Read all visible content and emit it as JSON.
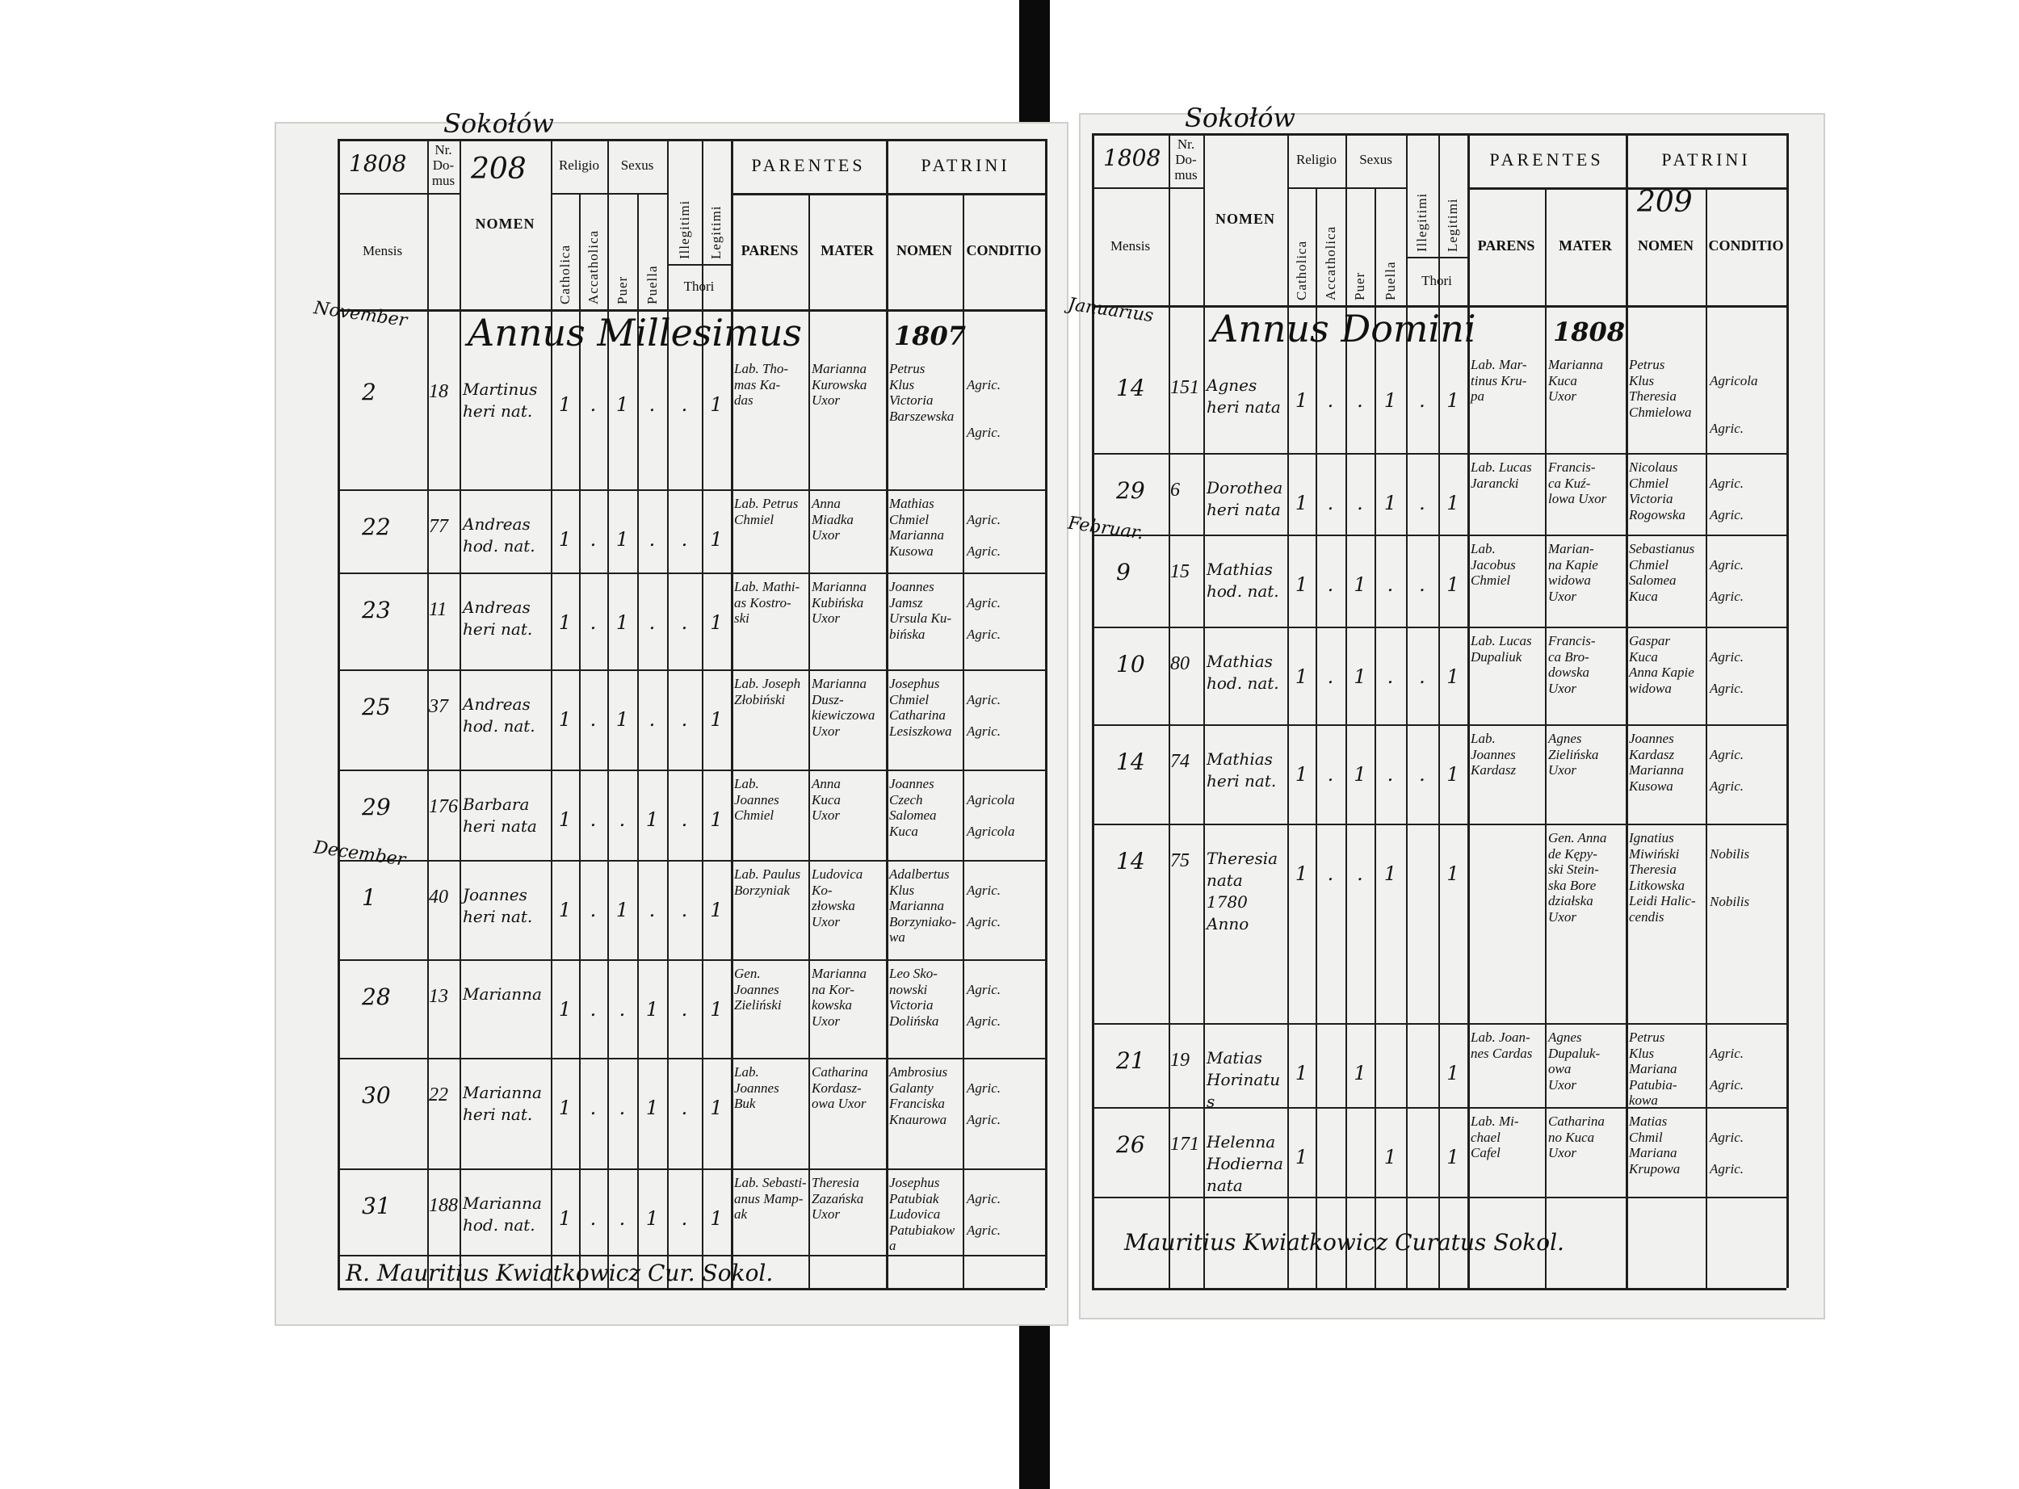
{
  "header_labels": {
    "mensis": "Mensis",
    "nr_domus": "Nr.\nDo-\nmus",
    "nomen": "NOMEN",
    "religio": "Religio",
    "catholica": "Catholica",
    "accatholica": "Accatholica",
    "sexus": "Sexus",
    "puer": "Puer",
    "puella": "Puella",
    "illegitimi": "Illegitimi",
    "legitimi": "Legitimi",
    "thori": "Thori",
    "parentes": "PARENTES",
    "patrini": "PATRINI",
    "parens": "PARENS",
    "mater": "MATER",
    "patrini_nomen": "NOMEN",
    "conditio": "CONDITIO"
  },
  "pages": [
    {
      "place": "Sokołów",
      "year": "1808",
      "page_number": "208",
      "heading": "Annus Millesimus",
      "heading_year": "1807",
      "rows": [
        {
          "month": "November",
          "day": "2",
          "house": "18",
          "name": "Martinus\nheri nat.",
          "marks": [
            "1",
            ".",
            "1",
            ".",
            ".",
            "1"
          ],
          "parens": "Lab. Tho-\nmas Ka-\ndas",
          "mater": "Marianna\nKurowska\nUxor",
          "patrini": "Petrus\nKlus\nVictoria\nBarszewska",
          "conditio": "Agric.\n\n\nAgric."
        },
        {
          "month": "",
          "day": "22",
          "house": "77",
          "name": "Andreas\nhod. nat.",
          "marks": [
            "1",
            ".",
            "1",
            ".",
            ".",
            "1"
          ],
          "parens": "Lab. Petrus\nChmiel",
          "mater": "Anna\nMiadka\nUxor",
          "patrini": "Mathias\nChmiel\nMarianna\nKusowa",
          "conditio": "Agric.\n\nAgric."
        },
        {
          "month": "",
          "day": "23",
          "house": "11",
          "name": "Andreas\nheri nat.",
          "marks": [
            "1",
            ".",
            "1",
            ".",
            ".",
            "1"
          ],
          "parens": "Lab. Mathi-\nas Kostro-\nski",
          "mater": "Marianna\nKubińska\nUxor",
          "patrini": "Joannes\nJamsz\nUrsula Ku-\nbińska",
          "conditio": "Agric.\n\nAgric."
        },
        {
          "month": "",
          "day": "25",
          "house": "37",
          "name": "Andreas\nhod. nat.",
          "marks": [
            "1",
            ".",
            "1",
            ".",
            ".",
            "1"
          ],
          "parens": "Lab. Joseph\nZłobiński",
          "mater": "Marianna Dusz-\nkiewiczowa\nUxor",
          "patrini": "Josephus\nChmiel\nCatharina\nLesiszkowa",
          "conditio": "Agric.\n\nAgric."
        },
        {
          "month": "",
          "day": "29",
          "house": "176",
          "name": "Barbara\nheri nata",
          "marks": [
            "1",
            ".",
            ".",
            "1",
            ".",
            "1"
          ],
          "parens": "Lab. Joannes\nChmiel",
          "mater": "Anna\nKuca\nUxor",
          "patrini": "Joannes\nCzech\nSalomea\nKuca",
          "conditio": "Agricola\n\nAgricola"
        },
        {
          "month": "December",
          "day": "1",
          "house": "40",
          "name": "Joannes\nheri nat.",
          "marks": [
            "1",
            ".",
            "1",
            ".",
            ".",
            "1"
          ],
          "parens": "Lab. Paulus\nBorzyniak",
          "mater": "Ludovica Ko-\nzłowska\nUxor",
          "patrini": "Adalbertus\nKlus\nMarianna\nBorzyniako-\nwa",
          "conditio": "Agric.\n\nAgric."
        },
        {
          "month": "",
          "day": "28",
          "house": "13",
          "name": "Marianna",
          "marks": [
            "1",
            ".",
            ".",
            "1",
            ".",
            "1"
          ],
          "parens": "Gen. Joannes\nZieliński",
          "mater": "Marianna\nna Kor-\nkowska\nUxor",
          "patrini": "Leo Sko-\nnowski\nVictoria\nDolińska",
          "conditio": "Agric.\n\nAgric."
        },
        {
          "month": "",
          "day": "30",
          "house": "22",
          "name": "Marianna\nheri nat.",
          "marks": [
            "1",
            ".",
            ".",
            "1",
            ".",
            "1"
          ],
          "parens": "Lab. Joannes\nBuk",
          "mater": "Catharina\nKordasz-\nowa Uxor",
          "patrini": "Ambrosius\nGalanty\nFranciska\nKnaurowa",
          "conditio": "Agric.\n\nAgric."
        },
        {
          "month": "",
          "day": "31",
          "house": "188",
          "name": "Marianna\nhod. nat.",
          "marks": [
            "1",
            ".",
            ".",
            "1",
            ".",
            "1"
          ],
          "parens": "Lab. Sebasti-\nanus Mamp-\nak",
          "mater": "Theresia\nZazańska\nUxor",
          "patrini": "Josephus\nPatubiak\nLudovica\nPatubiakowa",
          "conditio": "Agric.\n\nAgric."
        }
      ],
      "signature": "R. Mauritius Kwiatkowicz Cur. Sokol."
    },
    {
      "place": "Sokołów",
      "year": "1808",
      "page_number": "209",
      "heading": "Annus Domini",
      "heading_year": "1808",
      "rows": [
        {
          "month": "Januarius",
          "day": "14",
          "house": "151",
          "name": "Agnes\nheri nata",
          "marks": [
            "1",
            ".",
            ".",
            "1",
            ".",
            "1"
          ],
          "parens": "Lab. Mar-\ntinus Kru-\npa",
          "mater": "Marianna\nKuca\nUxor",
          "patrini": "Petrus\nKlus\nTheresia\nChmielowa",
          "conditio": "Agricola\n\n\nAgric."
        },
        {
          "month": "",
          "day": "29",
          "house": "6",
          "name": "Dorothea\nheri nata",
          "marks": [
            "1",
            ".",
            ".",
            "1",
            ".",
            "1"
          ],
          "parens": "Lab. Lucas\nJarancki",
          "mater": "Francis-\nca Kuź-\nlowa Uxor",
          "patrini": "Nicolaus\nChmiel\nVictoria\nRogowska",
          "conditio": "Agric.\n\nAgric."
        },
        {
          "month": "Februar.",
          "day": "9",
          "house": "15",
          "name": "Mathias\nhod. nat.",
          "marks": [
            "1",
            ".",
            "1",
            ".",
            ".",
            "1"
          ],
          "parens": "Lab. Jacobus\nChmiel",
          "mater": "Marian-\nna Kapie\nwidowa\nUxor",
          "patrini": "Sebastianus\nChmiel\nSalomea\nKuca",
          "conditio": "Agric.\n\nAgric."
        },
        {
          "month": "",
          "day": "10",
          "house": "80",
          "name": "Mathias\nhod. nat.",
          "marks": [
            "1",
            ".",
            "1",
            ".",
            ".",
            "1"
          ],
          "parens": "Lab. Lucas\nDupaliuk",
          "mater": "Francis-\nca Bro-\ndowska\nUxor",
          "patrini": "Gaspar\nKuca\nAnna Kapie\nwidowa",
          "conditio": "Agric.\n\nAgric."
        },
        {
          "month": "",
          "day": "14",
          "house": "74",
          "name": "Mathias\nheri nat.",
          "marks": [
            "1",
            ".",
            "1",
            ".",
            ".",
            "1"
          ],
          "parens": "Lab. Joannes\nKardasz",
          "mater": "Agnes\nZielińska\nUxor",
          "patrini": "Joannes\nKardasz\nMarianna\nKusowa",
          "conditio": "Agric.\n\nAgric."
        },
        {
          "month": "",
          "day": "14",
          "house": "75",
          "name": "Theresia\nnata\n1780 Anno",
          "marks": [
            "1",
            ".",
            ".",
            "1",
            "",
            "1"
          ],
          "parens": "",
          "mater": "Gen. Anna\nde Kępy-\nski Stein-\nska Bore\ndziałska\nUxor",
          "patrini": "Ignatius\nMiwiński\nTheresia\nLitkowska\nLeidi Halic-\ncendis",
          "conditio": "Nobilis\n\n\nNobilis"
        },
        {
          "month": "",
          "day": "21",
          "house": "19",
          "name": "Matias\nHorinatus",
          "marks": [
            "1",
            "",
            "1",
            "",
            "",
            "1"
          ],
          "parens": "Lab. Joan-\nnes Cardas",
          "mater": "Agnes\nDupaluk-\nowa\nUxor",
          "patrini": "Petrus\nKlus\nMariana\nPatubia-\nkowa",
          "conditio": "Agric.\n\nAgric."
        },
        {
          "month": "",
          "day": "26",
          "house": "171",
          "name": "Helenna\nHodierna\nnata",
          "marks": [
            "1",
            "",
            "",
            "1",
            "",
            "1"
          ],
          "parens": "Lab. Mi-\nchael\nCafel",
          "mater": "Catharina\nno Kuca\nUxor",
          "patrini": "Matias\nChmil\nMariana\nKrupowa",
          "conditio": "Agric.\n\nAgric."
        }
      ],
      "signature": "Mauritius Kwiatkowicz Curatus Sokol."
    }
  ],
  "colors": {
    "paper": "#f1f1ef",
    "ink": "#141414",
    "binding": "#0b0b0b"
  }
}
